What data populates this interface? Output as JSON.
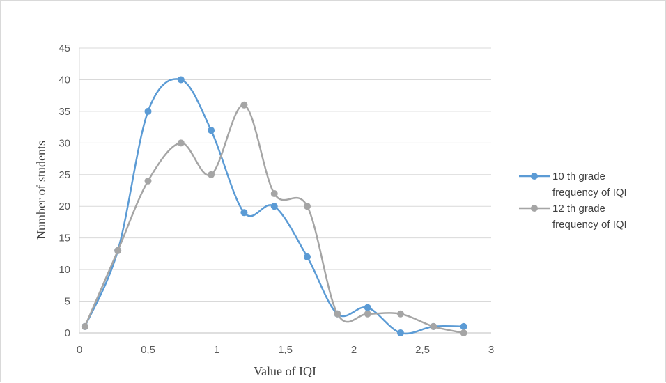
{
  "chart_data": {
    "type": "scatter",
    "xlabel": "Value of IQI",
    "ylabel": "Number of students",
    "xlim": [
      0,
      3
    ],
    "ylim": [
      0,
      45
    ],
    "x_ticks": [
      "0",
      "0,5",
      "1",
      "1,5",
      "2",
      "2,5",
      "3"
    ],
    "y_ticks": [
      "0",
      "5",
      "10",
      "15",
      "20",
      "25",
      "30",
      "35",
      "40",
      "45"
    ],
    "grid": "horizontal",
    "legend_position": "right",
    "series": [
      {
        "name": "10 th grade frequency of IQI",
        "color": "#5b9bd5",
        "x": [
          0.04,
          0.28,
          0.5,
          0.74,
          0.96,
          1.2,
          1.42,
          1.66,
          1.88,
          2.1,
          2.34,
          2.58,
          2.8
        ],
        "y": [
          1,
          13,
          35,
          40,
          32,
          19,
          20,
          12,
          3,
          4,
          0,
          1,
          1
        ]
      },
      {
        "name": "12 th grade frequency of IQI",
        "color": "#a5a5a5",
        "x": [
          0.04,
          0.28,
          0.5,
          0.74,
          0.96,
          1.2,
          1.42,
          1.66,
          1.88,
          2.1,
          2.34,
          2.58,
          2.8
        ],
        "y": [
          1,
          13,
          24,
          30,
          25,
          36,
          22,
          20,
          3,
          3,
          3,
          1,
          0
        ]
      }
    ],
    "legend": [
      {
        "line1": "10 th grade",
        "line2": "frequency of IQI"
      },
      {
        "line1": "12 th grade",
        "line2": "frequency of IQI"
      }
    ]
  }
}
